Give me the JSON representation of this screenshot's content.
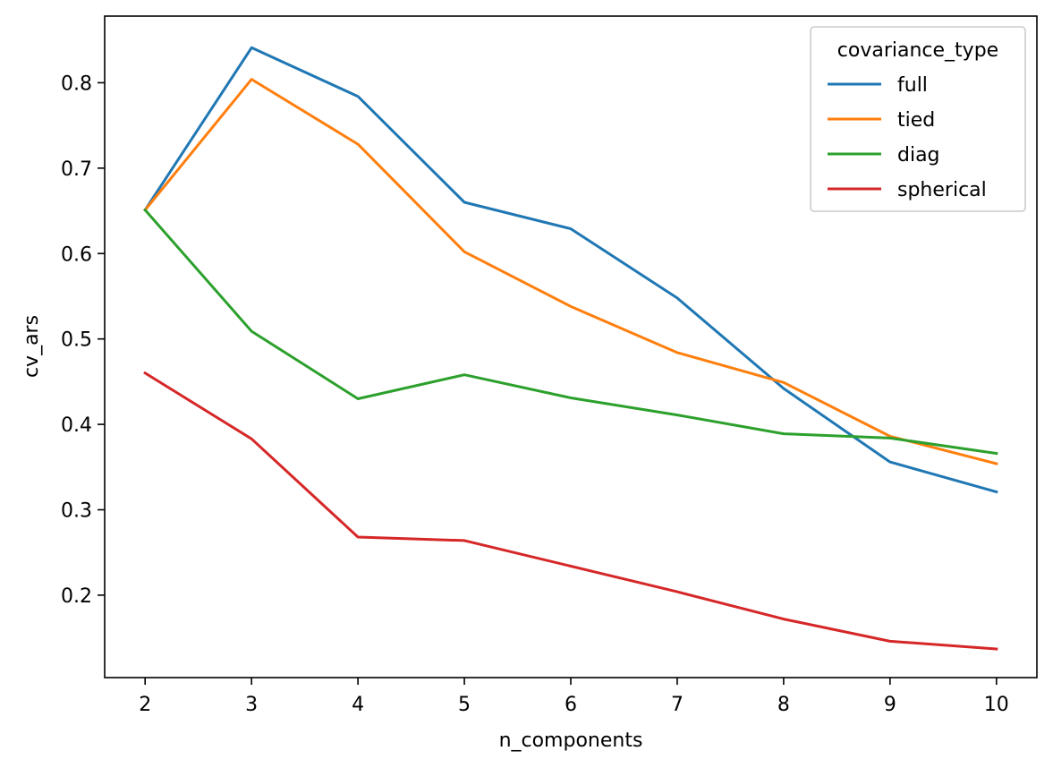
{
  "chart_data": {
    "type": "line",
    "title": "",
    "xlabel": "n_components",
    "ylabel": "cv_ars",
    "x": [
      2,
      3,
      4,
      5,
      6,
      7,
      8,
      9,
      10
    ],
    "xlim": [
      1.62,
      10.38
    ],
    "ylim": [
      0.1035,
      0.878
    ],
    "xticks": [
      2,
      3,
      4,
      5,
      6,
      7,
      8,
      9,
      10
    ],
    "yticks": [
      0.2,
      0.3,
      0.4,
      0.5,
      0.6,
      0.7,
      0.8
    ],
    "grid": false,
    "legend": {
      "title": "covariance_type",
      "placement": "top-right"
    },
    "series": [
      {
        "name": "full",
        "color": "#1f77b4",
        "values": [
          0.651,
          0.841,
          0.784,
          0.66,
          0.629,
          0.548,
          0.442,
          0.356,
          0.321
        ]
      },
      {
        "name": "tied",
        "color": "#ff7f0e",
        "values": [
          0.651,
          0.804,
          0.728,
          0.602,
          0.538,
          0.484,
          0.449,
          0.386,
          0.354
        ]
      },
      {
        "name": "diag",
        "color": "#2ca02c",
        "values": [
          0.651,
          0.509,
          0.43,
          0.458,
          0.431,
          0.411,
          0.389,
          0.384,
          0.366
        ]
      },
      {
        "name": "spherical",
        "color": "#d62728",
        "values": [
          0.46,
          0.383,
          0.268,
          0.264,
          0.234,
          0.204,
          0.172,
          0.146,
          0.137
        ]
      }
    ]
  }
}
